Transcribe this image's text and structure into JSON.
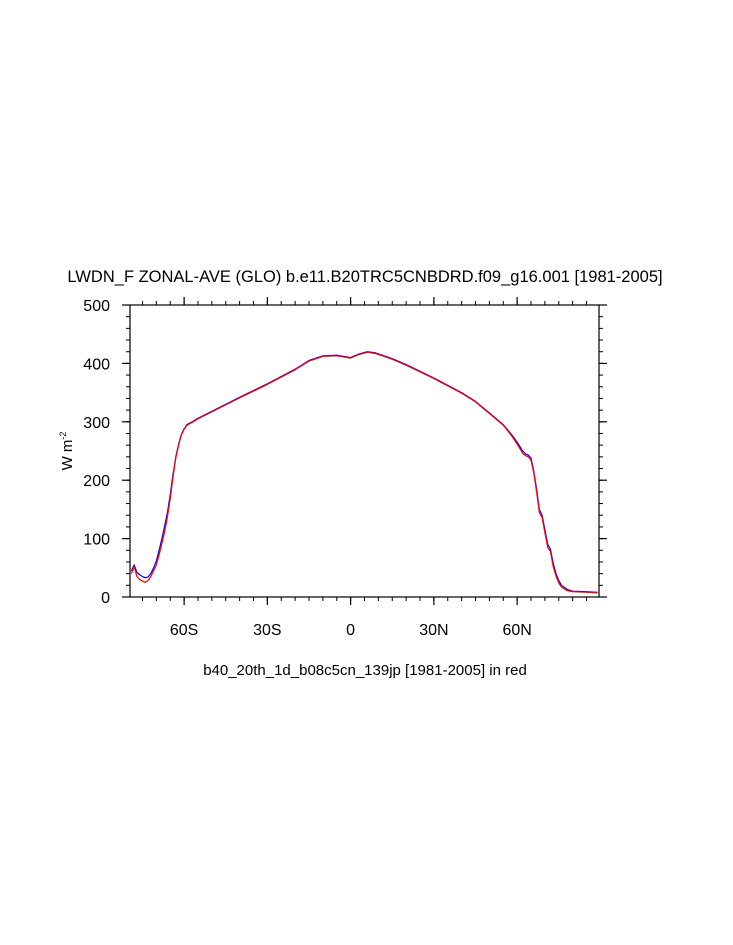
{
  "chart_data": {
    "type": "line",
    "title": "LWDN_F ZONAL-AVE (GLO) b.e11.B20TRC5CNBDRD.f09_g16.001 [1981-2005]",
    "xlabel": "b40_20th_1d_b08c5cn_139jp [1981-2005] in red",
    "ylabel": "W m",
    "ylabel_sup": "-2",
    "xlim": [
      -79.5,
      89.5
    ],
    "ylim": [
      0,
      500
    ],
    "xticks": [
      {
        "value": -60,
        "label": "60S"
      },
      {
        "value": -30,
        "label": "30S"
      },
      {
        "value": 0,
        "label": "0"
      },
      {
        "value": 30,
        "label": "30N"
      },
      {
        "value": 60,
        "label": "60N"
      }
    ],
    "yticks": [
      {
        "value": 0,
        "label": "0"
      },
      {
        "value": 100,
        "label": "100"
      },
      {
        "value": 200,
        "label": "200"
      },
      {
        "value": 300,
        "label": "300"
      },
      {
        "value": 400,
        "label": "400"
      },
      {
        "value": 500,
        "label": "500"
      }
    ],
    "series": [
      {
        "color": "#0000ff",
        "x": [
          -79,
          -78,
          -77,
          -76,
          -75,
          -74,
          -73,
          -72,
          -71,
          -70,
          -69,
          -68,
          -67,
          -66,
          -65,
          -64,
          -63,
          -62,
          -61,
          -60,
          -59,
          -58,
          -57,
          -56,
          -55,
          -50,
          -40,
          -30,
          -20,
          -15,
          -10,
          -5,
          0,
          3,
          6,
          9,
          15,
          20,
          30,
          40,
          45,
          50,
          55,
          58,
          60,
          62,
          63,
          64,
          65,
          66,
          67,
          68,
          69,
          70,
          71,
          72,
          73,
          74,
          75,
          76,
          78,
          80,
          85,
          89
        ],
        "y": [
          45,
          55,
          42,
          38,
          35,
          33,
          34,
          40,
          50,
          62,
          80,
          100,
          122,
          145,
          175,
          210,
          240,
          262,
          278,
          288,
          295,
          298,
          300,
          303,
          306,
          318,
          342,
          365,
          390,
          405,
          413,
          414,
          410,
          416,
          420,
          418,
          408,
          398,
          375,
          350,
          335,
          315,
          295,
          278,
          265,
          250,
          245,
          243,
          238,
          215,
          185,
          150,
          140,
          115,
          90,
          82,
          58,
          40,
          28,
          20,
          13,
          10,
          9,
          8
        ]
      },
      {
        "color": "#ff0000",
        "x": [
          -79,
          -78,
          -77,
          -76,
          -75,
          -74,
          -73,
          -72,
          -71,
          -70,
          -69,
          -68,
          -67,
          -66,
          -65,
          -64,
          -63,
          -62,
          -61,
          -60,
          -59,
          -58,
          -57,
          -56,
          -55,
          -50,
          -40,
          -30,
          -20,
          -15,
          -10,
          -5,
          0,
          3,
          6,
          9,
          15,
          20,
          30,
          40,
          45,
          50,
          55,
          58,
          60,
          62,
          63,
          64,
          65,
          66,
          67,
          68,
          69,
          70,
          71,
          72,
          73,
          74,
          75,
          76,
          78,
          80,
          85,
          89
        ],
        "y": [
          40,
          52,
          35,
          30,
          27,
          25,
          28,
          35,
          45,
          55,
          72,
          92,
          112,
          138,
          168,
          205,
          238,
          260,
          277,
          287,
          294,
          297,
          299,
          302,
          305,
          317,
          341,
          364,
          389,
          404,
          412,
          413,
          409,
          415,
          419,
          417,
          407,
          397,
          374,
          349,
          334,
          314,
          294,
          276,
          262,
          246,
          242,
          240,
          234,
          212,
          180,
          145,
          136,
          110,
          85,
          78,
          52,
          36,
          24,
          17,
          11,
          9,
          8,
          7
        ]
      }
    ]
  }
}
